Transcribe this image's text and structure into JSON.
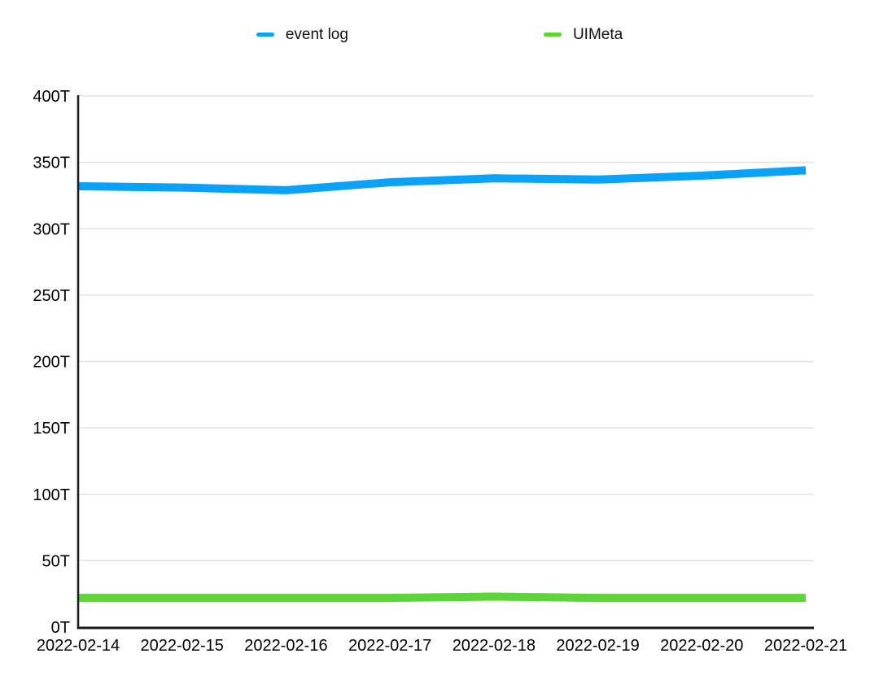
{
  "colors": {
    "background": "#ffffff",
    "grid": "#e2e2e2",
    "axis": "#1a1a1a",
    "text": "#000000",
    "event_log_blue": "#0aa1f8",
    "uimeta_green": "#5cd43a"
  },
  "legend": {
    "items": [
      {
        "label": "event log",
        "color": "#0aa1f8"
      },
      {
        "label": "UIMeta",
        "color": "#5cd43a"
      }
    ]
  },
  "chart_data": {
    "type": "line",
    "title": "",
    "xlabel": "",
    "ylabel": "",
    "x": [
      "2022-02-14",
      "2022-02-15",
      "2022-02-16",
      "2022-02-17",
      "2022-02-18",
      "2022-02-19",
      "2022-02-20",
      "2022-02-21"
    ],
    "series": [
      {
        "name": "event log",
        "color": "#0aa1f8",
        "values": [
          332,
          331,
          329,
          335,
          338,
          337,
          340,
          344
        ]
      },
      {
        "name": "UIMeta",
        "color": "#5cd43a",
        "values": [
          22,
          22,
          22,
          22,
          23,
          22,
          22,
          22
        ]
      }
    ],
    "unit": "T",
    "ylim": [
      0,
      400
    ],
    "y_tick_step": 50,
    "y_tick_labels": [
      "400T",
      "350T",
      "300T",
      "250T",
      "200T",
      "150T",
      "100T",
      "50T",
      "0T"
    ],
    "grid": true,
    "legend_position": "top"
  }
}
